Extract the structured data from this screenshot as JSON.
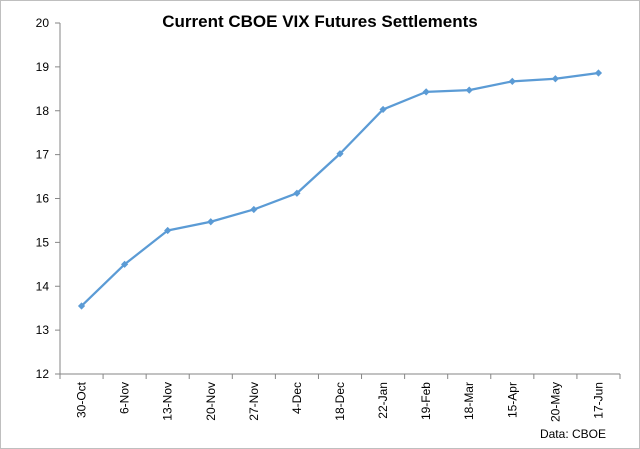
{
  "chart_data": {
    "type": "line",
    "title": "Current CBOE VIX Futures Settlements",
    "source_note": "Data: CBOE",
    "xlabel": "",
    "ylabel": "",
    "categories": [
      "30-Oct",
      "6-Nov",
      "13-Nov",
      "20-Nov",
      "27-Nov",
      "4-Dec",
      "18-Dec",
      "22-Jan",
      "19-Feb",
      "18-Mar",
      "15-Apr",
      "20-May",
      "17-Jun"
    ],
    "series": [
      {
        "values": [
          13.55,
          14.5,
          15.27,
          15.47,
          15.75,
          16.12,
          17.02,
          18.03,
          18.43,
          18.47,
          18.67,
          18.73,
          18.86
        ]
      }
    ],
    "ylim": [
      12,
      20
    ],
    "yticks": [
      "12",
      "13",
      "14",
      "15",
      "16",
      "17",
      "18",
      "19",
      "20"
    ],
    "grid": false,
    "legend": "none",
    "line_color": "#5b9bd5",
    "axis_color": "#868686"
  }
}
